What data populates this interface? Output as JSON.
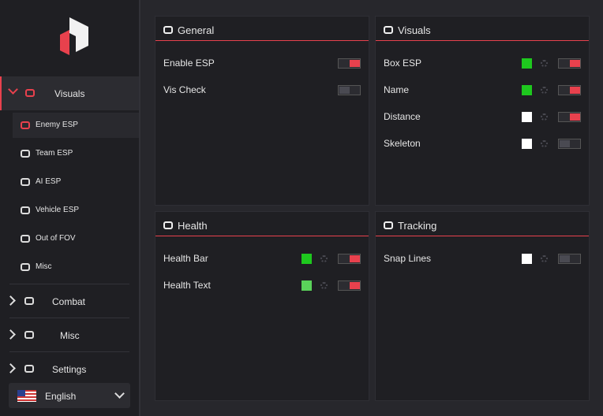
{
  "sidebar": {
    "sections": [
      {
        "label": "Visuals",
        "expanded": true,
        "items": [
          {
            "label": "Enemy ESP",
            "active": true
          },
          {
            "label": "Team ESP",
            "active": false
          },
          {
            "label": "AI ESP",
            "active": false
          },
          {
            "label": "Vehicle ESP",
            "active": false
          },
          {
            "label": "Out of FOV",
            "active": false
          },
          {
            "label": "Misc",
            "active": false
          }
        ]
      },
      {
        "label": "Combat",
        "expanded": false
      },
      {
        "label": "Misc",
        "expanded": false
      },
      {
        "label": "Settings",
        "expanded": false
      }
    ],
    "language": "English"
  },
  "panels": [
    {
      "title": "General",
      "rows": [
        {
          "label": "Enable ESP",
          "toggle": true
        },
        {
          "label": "Vis Check",
          "toggle": false
        }
      ]
    },
    {
      "title": "Visuals",
      "rows": [
        {
          "label": "Box ESP",
          "color": "#1ec81e",
          "toggle": true
        },
        {
          "label": "Name",
          "color": "#1ec81e",
          "toggle": true
        },
        {
          "label": "Distance",
          "color": "#ffffff",
          "toggle": true
        },
        {
          "label": "Skeleton",
          "color": "#ffffff",
          "toggle": false
        }
      ]
    },
    {
      "title": "Health",
      "rows": [
        {
          "label": "Health Bar",
          "color": "#1ec81e",
          "toggle": true
        },
        {
          "label": "Health Text",
          "color": "#5ad25a",
          "toggle": true
        }
      ]
    },
    {
      "title": "Tracking",
      "rows": [
        {
          "label": "Snap Lines",
          "color": "#ffffff",
          "toggle": false
        }
      ]
    }
  ]
}
